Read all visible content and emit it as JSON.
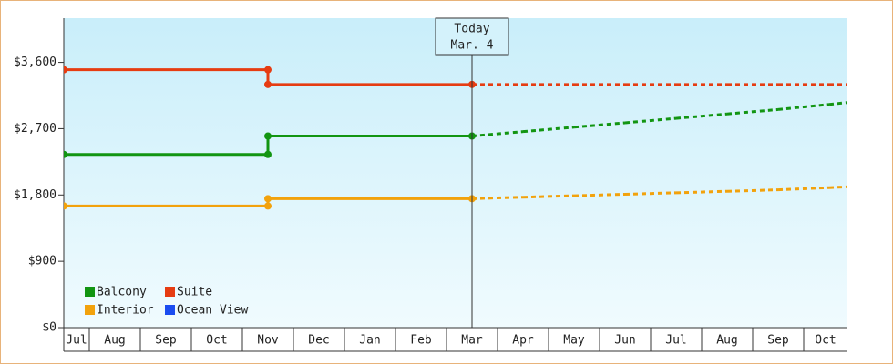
{
  "chart_data": {
    "type": "step-line",
    "categories": [
      "Jul",
      "Aug",
      "Sep",
      "Oct",
      "Nov",
      "Dec",
      "Jan",
      "Feb",
      "Mar",
      "Apr",
      "May",
      "Jun",
      "Jul",
      "Aug",
      "Sep",
      "Oct"
    ],
    "ylim": [
      0,
      4200
    ],
    "yticks": [
      {
        "value": 0,
        "label": "$0"
      },
      {
        "value": 900,
        "label": "$900"
      },
      {
        "value": 1800,
        "label": "$1,800"
      },
      {
        "value": 2700,
        "label": "$2,700"
      },
      {
        "value": 3600,
        "label": "$3,600"
      }
    ],
    "grid": false,
    "annotation": {
      "lines": [
        "Today",
        "Mar. 4"
      ]
    },
    "series": [
      {
        "name": "Balcony",
        "color": "#129512",
        "values": [
          2350,
          2350,
          2350,
          2350,
          2600,
          2600,
          2600,
          2600,
          2600,
          null,
          null,
          null,
          null,
          null,
          null,
          null
        ],
        "forecast": [
          null,
          null,
          null,
          null,
          null,
          null,
          null,
          null,
          2600,
          2660,
          2720,
          2780,
          2840,
          2900,
          2960,
          3030
        ]
      },
      {
        "name": "Suite",
        "color": "#e63c12",
        "values": [
          3500,
          3500,
          3500,
          3500,
          3300,
          3300,
          3300,
          3300,
          3300,
          null,
          null,
          null,
          null,
          null,
          null,
          null
        ],
        "forecast": [
          null,
          null,
          null,
          null,
          null,
          null,
          null,
          null,
          3300,
          3300,
          3300,
          3300,
          3300,
          3300,
          3300,
          3300
        ]
      },
      {
        "name": "Interior",
        "color": "#f2a20c",
        "values": [
          1650,
          1650,
          1650,
          1650,
          1750,
          1750,
          1750,
          1750,
          1750,
          null,
          null,
          null,
          null,
          null,
          null,
          null
        ],
        "forecast": [
          null,
          null,
          null,
          null,
          null,
          null,
          null,
          null,
          1750,
          1770,
          1790,
          1810,
          1830,
          1850,
          1870,
          1900
        ]
      },
      {
        "name": "Ocean View",
        "color": "#1a4cf0",
        "values": [
          null,
          null,
          null,
          null,
          null,
          null,
          null,
          null,
          null,
          null,
          null,
          null,
          null,
          null,
          null,
          null
        ],
        "forecast": [
          null,
          null,
          null,
          null,
          null,
          null,
          null,
          null,
          null,
          null,
          null,
          null,
          null,
          null,
          null,
          null
        ]
      }
    ]
  }
}
